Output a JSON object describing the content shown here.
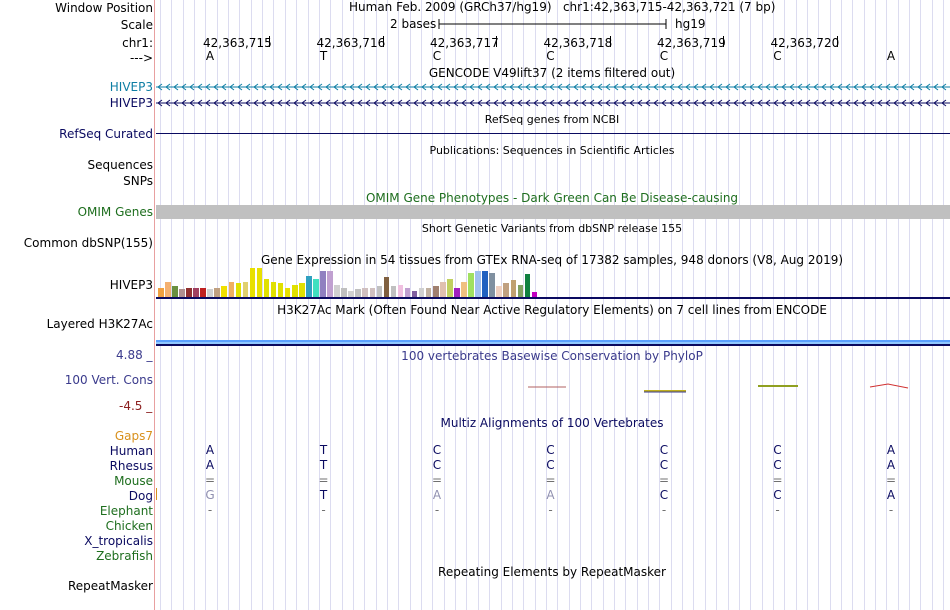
{
  "header": {
    "window_position_label": "Window Position",
    "window_position_value": "Human Feb. 2009 (GRCh37/hg19)   chr1:42,363,715-42,363,721 (7 bp)",
    "scale_label": "Scale",
    "scale_left": "2 bases",
    "scale_right": "hg19",
    "chrom_label": "chr1:",
    "strand_label": "--->",
    "coordinates": [
      "42,363,715",
      "42,363,716",
      "42,363,717",
      "42,363,718",
      "42,363,719",
      "42,363,720"
    ],
    "bases": [
      "A",
      "T",
      "C",
      "C",
      "C",
      "C",
      "A"
    ]
  },
  "tracks": {
    "gencode": {
      "title": "GENCODE V49lift37 (2 items filtered out)",
      "items": [
        "HIVEP3",
        "HIVEP3"
      ],
      "color_1": "#0e7ea4",
      "color_2": "#0a0a60"
    },
    "refseq": {
      "title": "RefSeq genes from NCBI",
      "label": "RefSeq Curated"
    },
    "publications": {
      "title": "Publications: Sequences in Scientific Articles",
      "label": "Sequences"
    },
    "snps": {
      "label": "SNPs"
    },
    "omim": {
      "title": "OMIM Gene Phenotypes - Dark Green Can Be Disease-causing",
      "label": "OMIM Genes",
      "color": "#1e6e1e"
    },
    "dbsnp": {
      "title": "Short Genetic Variants from dbSNP release 155",
      "label": "Common dbSNP(155)"
    },
    "gtex": {
      "title": "Gene Expression in 54 tissues from GTEx RNA-seq of 17382 samples, 948 donors (V8, Aug 2019)",
      "label": "HIVEP3",
      "bar_values": [
        0.3,
        0.5,
        0.35,
        0.25,
        0.3,
        0.3,
        0.3,
        0.25,
        0.3,
        0.35,
        0.5,
        0.45,
        0.5,
        0.95,
        0.95,
        0.6,
        0.5,
        0.45,
        0.3,
        0.4,
        0.45,
        0.7,
        0.6,
        0.85,
        0.85,
        0.4,
        0.3,
        0.2,
        0.25,
        0.3,
        0.3,
        0.35,
        0.65,
        0.35,
        0.4,
        0.3,
        0.2,
        0.3,
        0.3,
        0.35,
        0.5,
        0.6,
        0.3,
        0.5,
        0.8,
        0.85,
        0.85,
        0.8,
        0.35,
        0.45,
        0.55,
        0.4,
        0.75,
        0.15
      ],
      "bar_colors": [
        "#f0a040",
        "#f4b070",
        "#6a9040",
        "#b09090",
        "#903030",
        "#a04060",
        "#c02020",
        "#d0d0d0",
        "#c0a080",
        "#f0e000",
        "#f0b060",
        "#e0e000",
        "#e0d070",
        "#e8e000",
        "#e8e000",
        "#e0e000",
        "#e0e000",
        "#e0e000",
        "#e8e000",
        "#e0e000",
        "#e0e000",
        "#30a0c0",
        "#40e0c0",
        "#9080c0",
        "#c0a0d0",
        "#d0d0d0",
        "#c0c0c0",
        "#d0d0d0",
        "#c0c0c0",
        "#d0c0c0",
        "#d0c0c0",
        "#c0c0c0",
        "#806040",
        "#c0c0c0",
        "#f0c0e0",
        "#c0a0d0",
        "#8060a0",
        "#d0d0d0",
        "#c0b0a0",
        "#a08070",
        "#e0c0b0",
        "#c0d060",
        "#a020c0",
        "#f0c080",
        "#a0e060",
        "#a0c0f0",
        "#2060c0",
        "#8090a0",
        "#f0d0c0",
        "#c0a080",
        "#c0a070",
        "#80a060",
        "#108040",
        "#c000c0"
      ]
    },
    "h3k27ac": {
      "title": "H3K27Ac Mark (Often Found Near Active Regulatory Elements) on 7 cell lines from ENCODE",
      "label": "Layered H3K27Ac"
    },
    "conservation": {
      "title": "100 vertebrates Basewise Conservation by PhyloP",
      "label": "100 Vert. Cons",
      "ymax": "4.88 _",
      "ymin": "-4.5 _",
      "max_value": 4.88,
      "min_value": -4.5
    },
    "multiz": {
      "title": "Multiz Alignments of 100 Vertebrates",
      "gaps_label": "Gaps7",
      "species": [
        {
          "name": "Human",
          "bases": [
            "A",
            "T",
            "C",
            "C",
            "C",
            "C",
            "A"
          ]
        },
        {
          "name": "Rhesus",
          "bases": [
            "A",
            "T",
            "C",
            "C",
            "C",
            "C",
            "A"
          ]
        },
        {
          "name": "Mouse",
          "bases": [
            "=",
            "=",
            "=",
            "=",
            "=",
            "=",
            "="
          ]
        },
        {
          "name": "Dog",
          "bases": [
            "G",
            "T",
            "A",
            "A",
            "C",
            "C",
            "A"
          ]
        },
        {
          "name": "Elephant",
          "bases": [
            "-",
            "-",
            "-",
            "-",
            "-",
            "-",
            "-"
          ]
        },
        {
          "name": "Chicken",
          "bases": [
            "",
            "",
            "",
            "",
            "",
            "",
            ""
          ]
        },
        {
          "name": "X_tropicalis",
          "bases": [
            "",
            "",
            "",
            "",
            "",
            "",
            ""
          ]
        },
        {
          "name": "Zebrafish",
          "bases": [
            "",
            "",
            "",
            "",
            "",
            "",
            ""
          ]
        }
      ]
    },
    "repeatmasker": {
      "title": "Repeating Elements by RepeatMasker",
      "label": "RepeatMasker"
    }
  },
  "colors": {
    "navy": "#0a0a60",
    "gencode_blue": "#0e7ea4",
    "omim_green": "#1e6e1e",
    "gaps_orange": "#d8901c",
    "cons_purple": "#3a3a8c",
    "cons_red": "#8c2020",
    "species_green": "#1e6e1e",
    "species_navy": "#0a0a60"
  }
}
